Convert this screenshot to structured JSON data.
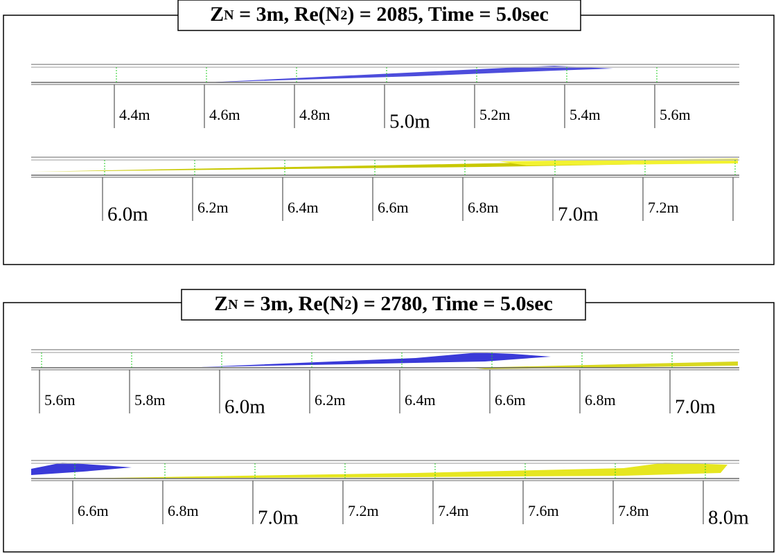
{
  "panels": [
    {
      "title": [
        "Z",
        "N",
        " = 3m, Re(N",
        "2",
        ") = 2085, Time = 5.0sec"
      ],
      "strips": [
        {
          "labels": [
            "4.4m",
            "4.6m",
            "4.8m",
            "5.0m",
            "5.2m",
            "5.4m",
            "5.6m"
          ]
        },
        {
          "labels": [
            "6.0m",
            "6.2m",
            "6.4m",
            "6.6m",
            "6.8m",
            "7.0m",
            "7.2m"
          ]
        }
      ]
    },
    {
      "title": [
        "Z",
        "N",
        " = 3m, Re(N",
        "2",
        ") = 2780, Time = 5.0sec"
      ],
      "strips": [
        {
          "labels": [
            "5.6m",
            "5.8m",
            "6.0m",
            "6.2m",
            "6.4m",
            "6.6m",
            "6.8m",
            "7.0m"
          ]
        },
        {
          "labels": [
            "6.6m",
            "6.8m",
            "7.0m",
            "7.2m",
            "7.4m",
            "7.6m",
            "7.8m",
            "8.0m"
          ]
        }
      ]
    }
  ]
}
